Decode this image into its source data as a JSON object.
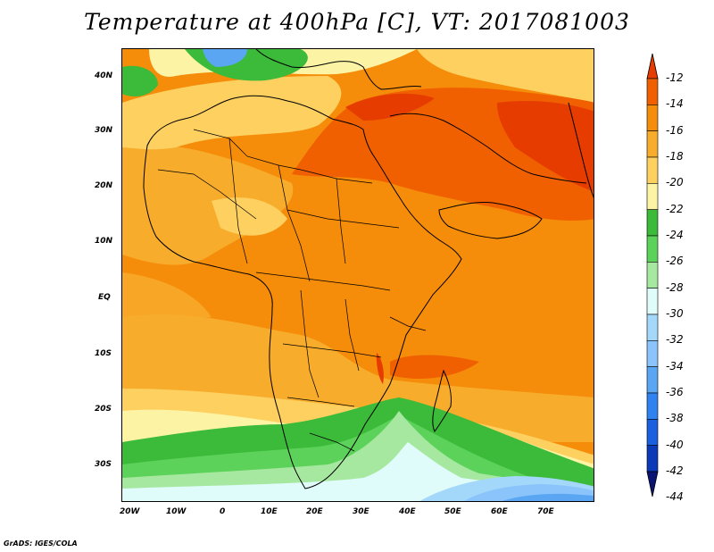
{
  "title": "Temperature at 400hPa [C], VT: 2017081003",
  "footer": "GrADS: IGES/COLA",
  "x_axis_labels": [
    "20W",
    "10W",
    "0",
    "10E",
    "20E",
    "30E",
    "40E",
    "50E",
    "60E",
    "70E"
  ],
  "y_axis_labels": [
    "40N",
    "30N",
    "20N",
    "10N",
    "EQ",
    "10S",
    "20S",
    "30S"
  ],
  "colorbar": {
    "levels": [
      "-12",
      "-14",
      "-16",
      "-18",
      "-20",
      "-22",
      "-24",
      "-26",
      "-28",
      "-30",
      "-32",
      "-34",
      "-36",
      "-38",
      "-40",
      "-42",
      "-44"
    ],
    "colors": [
      "#e63c00",
      "#f06000",
      "#f58c0a",
      "#f8ac2c",
      "#fdd060",
      "#fdf3a4",
      "#3cba3a",
      "#5cd25a",
      "#a6e8a0",
      "#e0fcfa",
      "#a4d8fa",
      "#8ac4fa",
      "#5aa6f2",
      "#2f82f0",
      "#1a5fe0",
      "#0a3ab8",
      "#0a1473"
    ]
  },
  "map": {
    "projection": "lat-lon",
    "lon_range": [
      "20W",
      "80E"
    ],
    "lat_range": [
      "37S",
      "45N"
    ],
    "variable": "Temperature at 400hPa",
    "units": "C"
  }
}
